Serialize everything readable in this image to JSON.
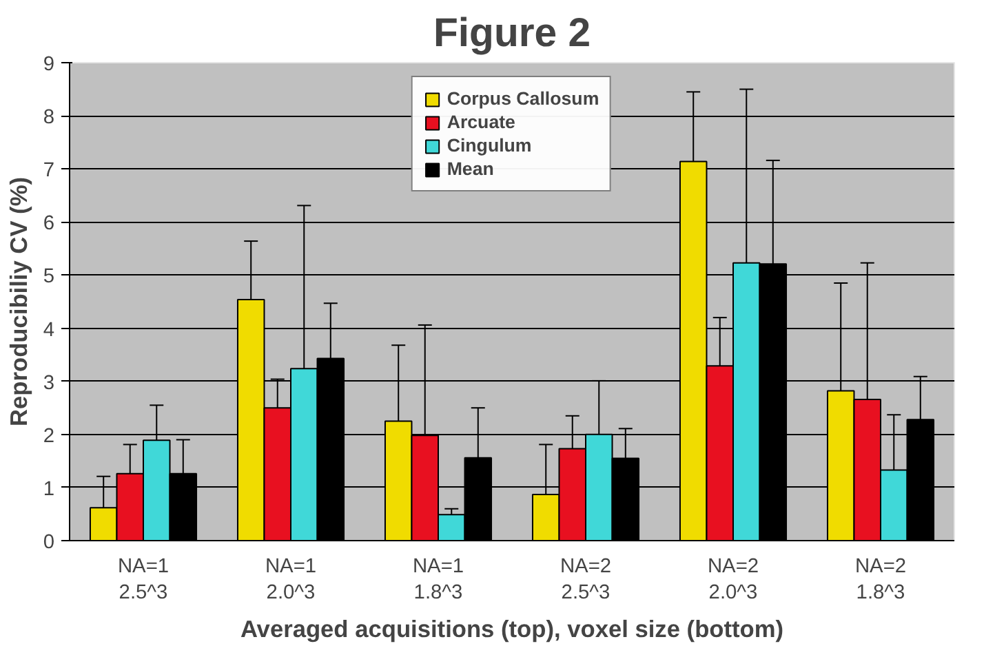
{
  "chart_data": {
    "type": "bar",
    "title": "Figure 2",
    "xlabel": "Averaged acquisitions (top), voxel size (bottom)",
    "ylabel": "Reproducibiliy CV (%)",
    "categories": [
      "NA=1\n2.5^3",
      "NA=1\n2.0^3",
      "NA=1\n1.8^3",
      "NA=2\n2.5^3",
      "NA=2\n2.0^3",
      "NA=2\n1.8^3"
    ],
    "series": [
      {
        "name": "Corpus Callosum",
        "color": "#f0dc00",
        "values": [
          0.62,
          4.54,
          2.25,
          0.87,
          7.14,
          2.82
        ],
        "errors": [
          [
            0.62,
            1.21
          ],
          [
            4.54,
            5.64
          ],
          [
            2.25,
            3.68
          ],
          [
            0.87,
            1.81
          ],
          [
            7.14,
            8.45
          ],
          [
            2.82,
            4.85
          ]
        ]
      },
      {
        "name": "Arcuate",
        "color": "#e81020",
        "values": [
          1.26,
          2.5,
          1.98,
          1.73,
          3.29,
          2.66
        ],
        "errors": [
          [
            1.26,
            1.81
          ],
          [
            2.5,
            3.04
          ],
          [
            1.98,
            4.06
          ],
          [
            1.73,
            2.35
          ],
          [
            3.29,
            4.2
          ],
          [
            2.66,
            5.23
          ]
        ]
      },
      {
        "name": "Cingulum",
        "color": "#40d8d8",
        "values": [
          1.89,
          3.24,
          0.49,
          2.0,
          5.23,
          1.33
        ],
        "errors": [
          [
            1.89,
            2.55
          ],
          [
            3.24,
            6.31
          ],
          [
            0.49,
            0.6
          ],
          [
            2.0,
            3.01
          ],
          [
            5.23,
            8.5
          ],
          [
            1.33,
            2.37
          ]
        ]
      },
      {
        "name": "Mean",
        "color": "#000000",
        "values": [
          1.26,
          3.43,
          1.56,
          1.55,
          5.21,
          2.28
        ],
        "errors": [
          [
            1.26,
            1.9
          ],
          [
            3.43,
            4.47
          ],
          [
            1.56,
            2.5
          ],
          [
            1.55,
            2.11
          ],
          [
            5.21,
            7.16
          ],
          [
            2.28,
            3.09
          ]
        ]
      }
    ],
    "ylim": [
      0,
      9
    ],
    "yticks": [
      0,
      1,
      2,
      3,
      4,
      5,
      6,
      7,
      8,
      9
    ],
    "grid": "y",
    "legend": "top"
  }
}
